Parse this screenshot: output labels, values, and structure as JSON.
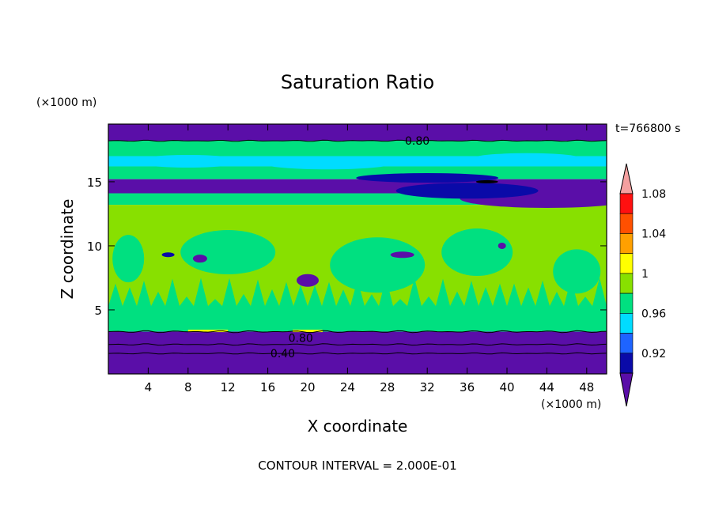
{
  "chart_data": {
    "type": "heatmap",
    "title": "Saturation Ratio",
    "xlabel": "X coordinate",
    "ylabel": "Z coordinate",
    "x_unit": "(×1000 m)",
    "y_unit": "(×1000 m)",
    "time_label": "t=766800 s",
    "footer": "CONTOUR INTERVAL = 2.000E-01",
    "xlim": [
      0,
      50
    ],
    "ylim": [
      0,
      19.5
    ],
    "x_ticks": [
      4,
      8,
      12,
      16,
      20,
      24,
      28,
      32,
      36,
      40,
      44,
      48
    ],
    "y_ticks": [
      5,
      10,
      15
    ],
    "colorbar": {
      "levels": [
        0.92,
        0.94,
        0.96,
        0.98,
        1.0,
        1.02,
        1.04,
        1.06,
        1.08,
        1.1
      ],
      "colors": [
        "#5a0ea8",
        "#0a0aa8",
        "#1e64ff",
        "#00dcff",
        "#00e080",
        "#88e000",
        "#ffff00",
        "#ffa000",
        "#ff5000",
        "#ff1010",
        "#f4a0a0"
      ],
      "tick_labels": [
        "0.92",
        "0.96",
        "1",
        "1.04",
        "1.08"
      ]
    },
    "contour_labels": [
      {
        "text": "0.80",
        "x": 31,
        "y": 18.2
      },
      {
        "text": "0.80",
        "x": 19.3,
        "y": 2.8
      },
      {
        "text": "0.40",
        "x": 17.5,
        "y": 1.6
      }
    ],
    "bands": [
      {
        "level": "<0.92",
        "z": [
          18.2,
          19.5
        ]
      },
      {
        "level": "0.98",
        "z": [
          17.0,
          18.2
        ]
      },
      {
        "level": "0.96",
        "z": [
          16.2,
          17.0
        ]
      },
      {
        "level": "0.98",
        "z": [
          15.2,
          16.2
        ]
      },
      {
        "level": "<0.92",
        "z": [
          14.1,
          15.2
        ]
      },
      {
        "level": "0.98",
        "z": [
          13.2,
          14.1
        ]
      },
      {
        "level": "1.00",
        "z": [
          5.0,
          13.2
        ]
      },
      {
        "level": "0.98",
        "z": [
          3.3,
          5.0
        ]
      },
      {
        "level": "<0.92",
        "z": [
          0,
          3.3
        ]
      }
    ]
  }
}
